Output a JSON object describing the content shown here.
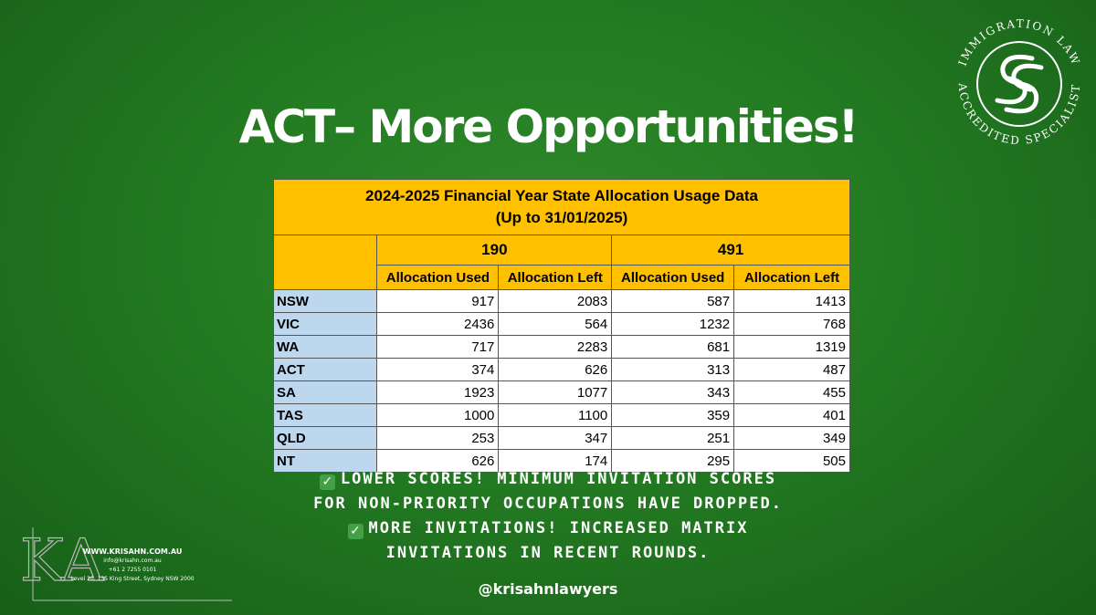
{
  "headline": "ACT– More Opportunities!",
  "seal": {
    "top_text": "IMMIGRATION LAW",
    "bottom_text": "ACCREDITED SPECIALIST"
  },
  "table": {
    "title_line1": "2024-2025 Financial Year State Allocation Usage Data",
    "title_line2": "(Up to 31/01/2025)",
    "groups": [
      "190",
      "491"
    ],
    "subheaders": [
      "Allocation Used",
      "Allocation Left",
      "Allocation Used",
      "Allocation Left"
    ],
    "rows": [
      {
        "state": "NSW",
        "values": [
          "917",
          "2083",
          "587",
          "1413"
        ]
      },
      {
        "state": "VIC",
        "values": [
          "2436",
          "564",
          "1232",
          "768"
        ]
      },
      {
        "state": "WA",
        "values": [
          "717",
          "2283",
          "681",
          "1319"
        ]
      },
      {
        "state": "ACT",
        "values": [
          "374",
          "626",
          "313",
          "487"
        ]
      },
      {
        "state": "SA",
        "values": [
          "1923",
          "1077",
          "343",
          "455"
        ]
      },
      {
        "state": "TAS",
        "values": [
          "1000",
          "1100",
          "359",
          "401"
        ]
      },
      {
        "state": "QLD",
        "values": [
          "253",
          "347",
          "251",
          "349"
        ]
      },
      {
        "state": "NT",
        "values": [
          "626",
          "174",
          "295",
          "505"
        ]
      }
    ]
  },
  "bullets": {
    "line1": "LOWER SCORES! MINIMUM INVITATION SCORES",
    "line2": "FOR NON-PRIORITY OCCUPATIONS HAVE DROPPED.",
    "line3": "MORE INVITATIONS! INCREASED MATRIX",
    "line4": "INVITATIONS IN RECENT ROUNDS."
  },
  "handle": "@krisahnlawyers",
  "footer": {
    "logo_letters": "KA",
    "website": "WWW.KRISAHN.COM.AU",
    "email": "info@krisahn.com.au",
    "phone": "+61 2 7255 0101",
    "address": "Level 20, 135 King Street, Sydney NSW 2000"
  },
  "colors": {
    "background": "#237a22",
    "table_header": "#ffc000",
    "state_cell": "#bdd7ee",
    "check": "#43a047"
  },
  "icons": [
    "check-icon",
    "seal-icon"
  ]
}
